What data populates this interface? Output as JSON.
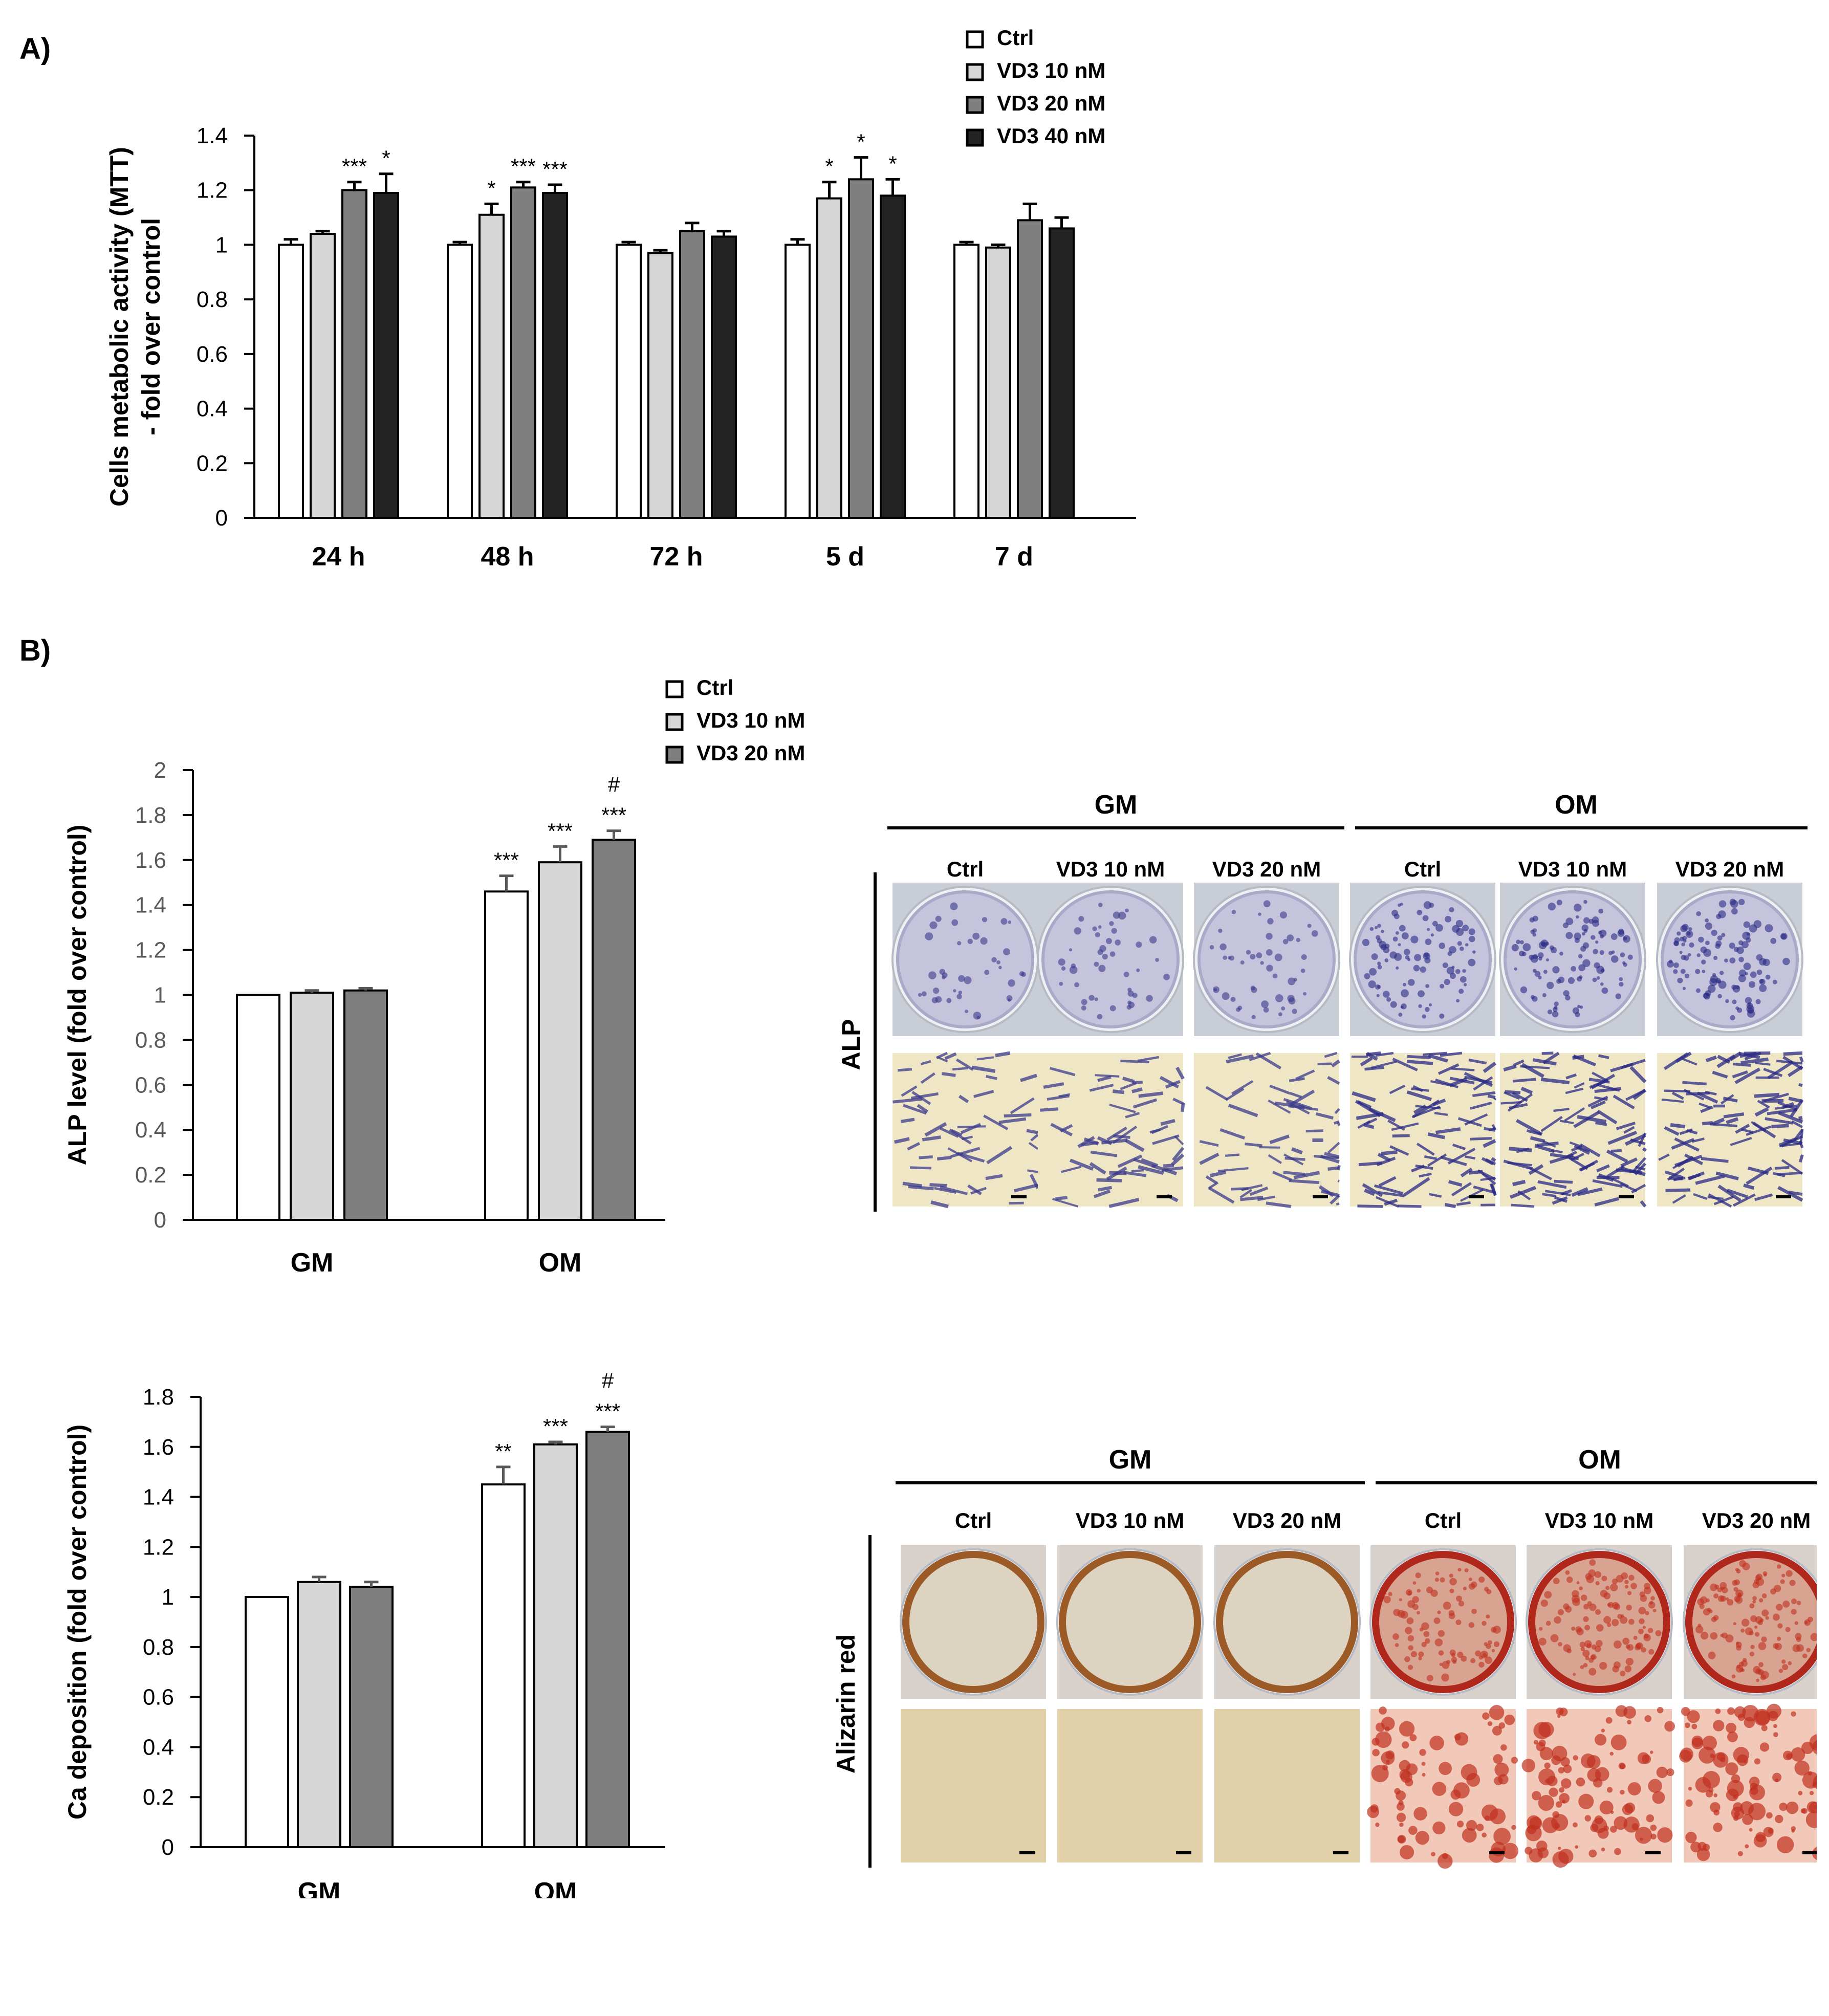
{
  "panels": {
    "a_label": "A)",
    "b_label": "B)"
  },
  "series_colors": [
    "#ffffff",
    "#d6d6d6",
    "#7f7f7f",
    "#232323"
  ],
  "chart_data": [
    {
      "id": "chartA",
      "type": "bar",
      "ylabel": "Cells metabolic activity (MTT) - fold over control",
      "ylabel_lines": [
        "Cells metabolic activity (MTT)",
        "- fold over control"
      ],
      "xlabel": "",
      "ylim": [
        0,
        1.4
      ],
      "yticks": [
        "0",
        "0.2",
        "0.4",
        "0.6",
        "0.8",
        "1",
        "1.2",
        "1.4"
      ],
      "tick_color": "#000000",
      "grid": false,
      "legend_position": "top-right",
      "categories": [
        "24 h",
        "48 h",
        "72 h",
        "5 d",
        "7 d"
      ],
      "series": [
        {
          "name": "Ctrl",
          "values": [
            1.0,
            1.0,
            1.0,
            1.0,
            1.0
          ],
          "errors": [
            0.02,
            0.01,
            0.01,
            0.02,
            0.01
          ],
          "sig": [
            "",
            "",
            "",
            "",
            ""
          ]
        },
        {
          "name": "VD3 10 nM",
          "values": [
            1.04,
            1.11,
            0.97,
            1.17,
            0.99
          ],
          "errors": [
            0.01,
            0.04,
            0.01,
            0.06,
            0.01
          ],
          "sig": [
            "",
            "*",
            "",
            "*",
            ""
          ]
        },
        {
          "name": "VD3 20 nM",
          "values": [
            1.2,
            1.21,
            1.05,
            1.24,
            1.09
          ],
          "errors": [
            0.03,
            0.02,
            0.03,
            0.08,
            0.06
          ],
          "sig": [
            "***",
            "***",
            "",
            "*",
            ""
          ]
        },
        {
          "name": "VD3 40 nM",
          "values": [
            1.19,
            1.19,
            1.03,
            1.18,
            1.06
          ],
          "errors": [
            0.07,
            0.03,
            0.02,
            0.06,
            0.04
          ],
          "sig": [
            "*",
            "***",
            "",
            "*",
            ""
          ]
        }
      ]
    },
    {
      "id": "chartB1",
      "type": "bar",
      "ylabel": "ALP level (fold over control)",
      "xlabel": "",
      "ylim": [
        0,
        2
      ],
      "yticks": [
        "0",
        "0.2",
        "0.4",
        "0.6",
        "0.8",
        "1",
        "1.2",
        "1.4",
        "1.6",
        "1.8",
        "2"
      ],
      "tick_color": "#595959",
      "grid": false,
      "legend_position": "top-right",
      "categories": [
        "GM",
        "OM"
      ],
      "series": [
        {
          "name": "Ctrl",
          "values": [
            1.0,
            1.46
          ],
          "errors": [
            0.0,
            0.07
          ],
          "sig": [
            "",
            "***"
          ],
          "sig2": [
            "",
            ""
          ]
        },
        {
          "name": "VD3 10 nM",
          "values": [
            1.01,
            1.59
          ],
          "errors": [
            0.01,
            0.07
          ],
          "sig": [
            "",
            "***"
          ],
          "sig2": [
            "",
            ""
          ]
        },
        {
          "name": "VD3 20 nM",
          "values": [
            1.02,
            1.69
          ],
          "errors": [
            0.01,
            0.04
          ],
          "sig": [
            "",
            "***"
          ],
          "sig2": [
            "",
            "#"
          ]
        }
      ]
    },
    {
      "id": "chartB2",
      "type": "bar",
      "ylabel": "Ca deposition (fold over control)",
      "xlabel": "",
      "ylim": [
        0,
        1.8
      ],
      "yticks": [
        "0",
        "0.2",
        "0.4",
        "0.6",
        "0.8",
        "1",
        "1.2",
        "1.4",
        "1.6",
        "1.8"
      ],
      "tick_color": "#000000",
      "grid": false,
      "legend_position": "none",
      "categories": [
        "GM",
        "OM"
      ],
      "series": [
        {
          "name": "Ctrl",
          "values": [
            1.0,
            1.45
          ],
          "errors": [
            0.0,
            0.07
          ],
          "sig": [
            "",
            "**"
          ],
          "sig2": [
            "",
            ""
          ]
        },
        {
          "name": "VD3 10 nM",
          "values": [
            1.06,
            1.61
          ],
          "errors": [
            0.02,
            0.01
          ],
          "sig": [
            "",
            "***"
          ],
          "sig2": [
            "",
            ""
          ]
        },
        {
          "name": "VD3 20 nM",
          "values": [
            1.04,
            1.66
          ],
          "errors": [
            0.02,
            0.02
          ],
          "sig": [
            "",
            "***"
          ],
          "sig2": [
            "",
            "#"
          ]
        }
      ]
    }
  ],
  "image_panels": [
    {
      "id": "alp",
      "row_label": "ALP",
      "groups": [
        "GM",
        "OM"
      ],
      "columns": [
        "Ctrl",
        "VD3 10 nM",
        "VD3 20 nM",
        "Ctrl",
        "VD3 10 nM",
        "VD3 20 nM"
      ],
      "stain_colors": [
        "#3b3a8c",
        "#3b3a8c",
        "#3b3a8c",
        "#2a2a85",
        "#2a2a85",
        "#2a2a85"
      ],
      "stain_density": [
        0.25,
        0.28,
        0.3,
        0.6,
        0.65,
        0.7
      ]
    },
    {
      "id": "alizarin",
      "row_label": "Alizarin red",
      "groups": [
        "GM",
        "OM"
      ],
      "columns": [
        "Ctrl",
        "VD3 10 nM",
        "VD3 20 nM",
        "Ctrl",
        "VD3 10 nM",
        "VD3 20 nM"
      ],
      "stain_colors": [
        "#a8703a",
        "#a8703a",
        "#a8703a",
        "#c03020",
        "#c03020",
        "#c03020"
      ],
      "stain_density": [
        0.0,
        0.0,
        0.0,
        0.55,
        0.7,
        0.75
      ]
    }
  ]
}
